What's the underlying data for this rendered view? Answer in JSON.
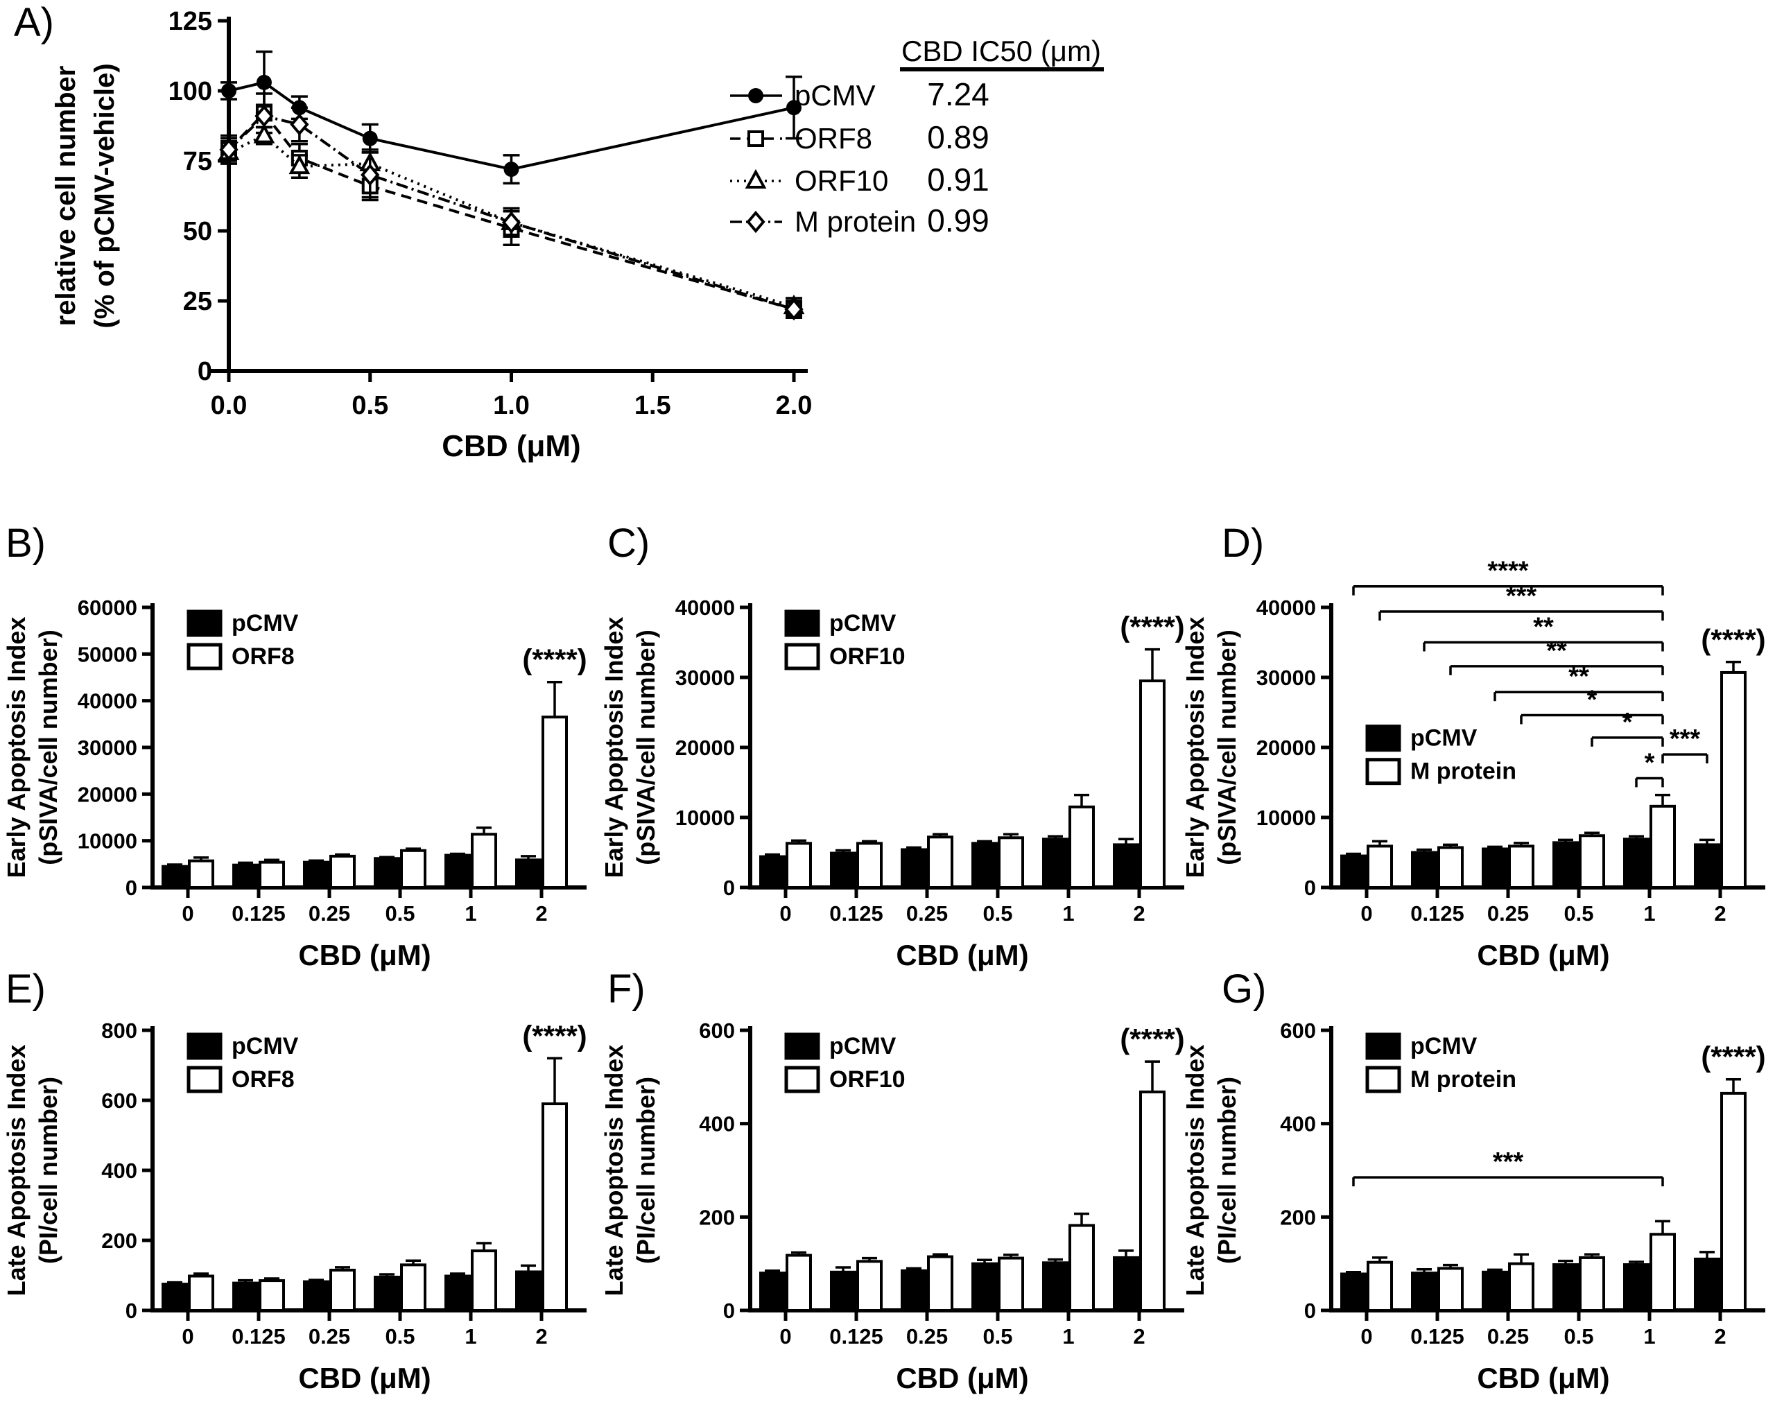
{
  "figure": {
    "background": "#ffffff",
    "ink": "#000000",
    "panel_letters": {
      "a": "A)",
      "b": "B)",
      "c": "C)",
      "d": "D)",
      "e": "E)",
      "f": "F)",
      "g": "G)"
    }
  },
  "chart_data": [
    {
      "id": "A",
      "type": "line",
      "xlabel": "CBD (μM)",
      "ylabel_lines": [
        "relative cell number",
        "(% of pCMV-vehicle)"
      ],
      "xlim": [
        0,
        2
      ],
      "xticks": [
        0,
        0.5,
        1,
        1.5,
        2
      ],
      "xtick_labels": [
        "0.0",
        "0.5",
        "1.0",
        "1.5",
        "2.0"
      ],
      "ylim": [
        0,
        125
      ],
      "yticks": [
        0,
        25,
        50,
        75,
        100,
        125
      ],
      "grid": false,
      "x": [
        0,
        0.125,
        0.25,
        0.5,
        1,
        2
      ],
      "series": [
        {
          "name": "pCMV",
          "marker": "circle-filled",
          "line": "solid",
          "values": [
            100,
            103,
            94,
            83,
            72,
            94
          ],
          "errors": [
            3,
            11,
            4,
            5,
            5,
            11
          ]
        },
        {
          "name": "ORF8",
          "marker": "square-open",
          "line": "dashed",
          "values": [
            79,
            92,
            76,
            66,
            51,
            22
          ],
          "errors": [
            5,
            7,
            5,
            4,
            6,
            3
          ]
        },
        {
          "name": "ORF10",
          "marker": "triangle-open",
          "line": "dotted",
          "values": [
            78,
            84,
            73,
            74,
            53,
            23
          ],
          "errors": [
            4,
            3,
            4,
            4,
            5,
            3
          ]
        },
        {
          "name": "M protein",
          "marker": "diamond-open",
          "line": "dashdot",
          "values": [
            79,
            91,
            88,
            70,
            53,
            22
          ],
          "errors": [
            4,
            4,
            6,
            9,
            5,
            3
          ]
        }
      ],
      "ic50_table": {
        "header": "CBD IC50 (μm)",
        "rows": [
          {
            "label": "pCMV",
            "value": "7.24"
          },
          {
            "label": "ORF8",
            "value": "0.89"
          },
          {
            "label": "ORF10",
            "value": "0.91"
          },
          {
            "label": "M protein",
            "value": "0.99"
          }
        ]
      }
    },
    {
      "id": "B",
      "type": "bar",
      "xlabel": "CBD (μM)",
      "ylabel_lines": [
        "Early Apoptosis Index",
        "(pSIVA/cell number)"
      ],
      "categories": [
        "0",
        "0.125",
        "0.25",
        "0.5",
        "1",
        "2"
      ],
      "ylim": [
        0,
        60000
      ],
      "yticks": [
        0,
        10000,
        20000,
        30000,
        40000,
        50000,
        60000
      ],
      "series": [
        {
          "name": "pCMV",
          "fill": "black",
          "values": [
            4500,
            4800,
            5400,
            6200,
            6900,
            5900
          ],
          "errors": [
            400,
            500,
            350,
            300,
            300,
            800
          ]
        },
        {
          "name": "ORF8",
          "fill": "white",
          "values": [
            5700,
            5400,
            6700,
            7900,
            11400,
            36500
          ],
          "errors": [
            700,
            500,
            350,
            400,
            1400,
            7500
          ]
        }
      ],
      "sig_label": "(****)"
    },
    {
      "id": "C",
      "type": "bar",
      "xlabel": "CBD (μM)",
      "ylabel_lines": [
        "Early Apoptosis Index",
        "(pSIVA/cell number)"
      ],
      "categories": [
        "0",
        "0.125",
        "0.25",
        "0.5",
        "1",
        "2"
      ],
      "ylim": [
        0,
        40000
      ],
      "yticks": [
        0,
        10000,
        20000,
        30000,
        40000
      ],
      "series": [
        {
          "name": "pCMV",
          "fill": "black",
          "values": [
            4400,
            4900,
            5400,
            6300,
            6900,
            6100
          ],
          "errors": [
            300,
            400,
            300,
            300,
            400,
            800
          ]
        },
        {
          "name": "ORF10",
          "fill": "white",
          "values": [
            6300,
            6300,
            7200,
            7100,
            11500,
            29500
          ],
          "errors": [
            400,
            300,
            400,
            500,
            1700,
            4500
          ]
        }
      ],
      "sig_label": "(****)"
    },
    {
      "id": "D",
      "type": "bar",
      "xlabel": "CBD (μM)",
      "ylabel_lines": [
        "Early Apoptosis Index",
        "(pSIVA/cell number)"
      ],
      "categories": [
        "0",
        "0.125",
        "0.25",
        "0.5",
        "1",
        "2"
      ],
      "ylim": [
        0,
        40000
      ],
      "yticks": [
        0,
        10000,
        20000,
        30000,
        40000
      ],
      "series": [
        {
          "name": "pCMV",
          "fill": "black",
          "values": [
            4500,
            5000,
            5500,
            6400,
            6900,
            6100
          ],
          "errors": [
            300,
            400,
            300,
            400,
            400,
            700
          ]
        },
        {
          "name": "M protein",
          "fill": "white",
          "values": [
            5900,
            5700,
            5900,
            7400,
            11600,
            30700
          ],
          "errors": [
            700,
            400,
            450,
            400,
            1600,
            1500
          ]
        }
      ],
      "sig_label": "(****)",
      "legend_y": 23000,
      "brackets": [
        {
          "stars": "****",
          "x1": [
            0,
            0
          ],
          "x2": [
            4,
            1
          ],
          "y": 43000
        },
        {
          "stars": "***",
          "x1": [
            0,
            1
          ],
          "x2": [
            4,
            1
          ],
          "y": 39400
        },
        {
          "stars": "**",
          "x1": [
            1,
            0
          ],
          "x2": [
            4,
            1
          ],
          "y": 35000
        },
        {
          "stars": "**",
          "x1": [
            1,
            1
          ],
          "x2": [
            4,
            1
          ],
          "y": 31600
        },
        {
          "stars": "**",
          "x1": [
            2,
            0
          ],
          "x2": [
            4,
            1
          ],
          "y": 27900
        },
        {
          "stars": "*",
          "x1": [
            2,
            1
          ],
          "x2": [
            4,
            1
          ],
          "y": 24600
        },
        {
          "stars": "*",
          "x1": [
            3,
            1
          ],
          "x2": [
            4,
            1
          ],
          "y": 21400
        },
        {
          "stars": "***",
          "x1": [
            4,
            1
          ],
          "x2": [
            5,
            0
          ],
          "y": 19000
        },
        {
          "stars": "*",
          "x1": [
            4,
            0
          ],
          "x2": [
            4,
            1
          ],
          "y": 15600
        }
      ]
    },
    {
      "id": "E",
      "type": "bar",
      "xlabel": "CBD (μM)",
      "ylabel_lines": [
        "Late Apoptosis Index",
        "(PI/cell number)"
      ],
      "categories": [
        "0",
        "0.125",
        "0.25",
        "0.5",
        "1",
        "2"
      ],
      "ylim": [
        0,
        800
      ],
      "yticks": [
        0,
        200,
        400,
        600,
        800
      ],
      "series": [
        {
          "name": "pCMV",
          "fill": "black",
          "values": [
            75,
            78,
            82,
            95,
            98,
            110
          ],
          "errors": [
            5,
            8,
            5,
            8,
            7,
            18
          ]
        },
        {
          "name": "ORF8",
          "fill": "white",
          "values": [
            98,
            85,
            115,
            130,
            170,
            590
          ],
          "errors": [
            7,
            6,
            8,
            12,
            22,
            130
          ]
        }
      ],
      "sig_label": "(****)"
    },
    {
      "id": "F",
      "type": "bar",
      "xlabel": "CBD (μM)",
      "ylabel_lines": [
        "Late Apoptosis Index",
        "(PI/cell number)"
      ],
      "categories": [
        "0",
        "0.125",
        "0.25",
        "0.5",
        "1",
        "2"
      ],
      "ylim": [
        0,
        600
      ],
      "yticks": [
        0,
        200,
        400,
        600
      ],
      "series": [
        {
          "name": "pCMV",
          "fill": "black",
          "values": [
            80,
            82,
            85,
            100,
            102,
            113
          ],
          "errors": [
            5,
            10,
            5,
            8,
            7,
            15
          ]
        },
        {
          "name": "ORF10",
          "fill": "white",
          "values": [
            118,
            105,
            115,
            112,
            182,
            468
          ],
          "errors": [
            6,
            7,
            5,
            7,
            25,
            65
          ]
        }
      ],
      "sig_label": "(****)"
    },
    {
      "id": "G",
      "type": "bar",
      "xlabel": "CBD (μM)",
      "ylabel_lines": [
        "Late Apoptosis Index",
        "(PI/cell number)"
      ],
      "categories": [
        "0",
        "0.125",
        "0.25",
        "0.5",
        "1",
        "2"
      ],
      "ylim": [
        0,
        600
      ],
      "yticks": [
        0,
        200,
        400,
        600
      ],
      "series": [
        {
          "name": "pCMV",
          "fill": "black",
          "values": [
            78,
            80,
            82,
            98,
            98,
            110
          ],
          "errors": [
            4,
            8,
            5,
            8,
            6,
            15
          ]
        },
        {
          "name": "M protein",
          "fill": "white",
          "values": [
            103,
            90,
            100,
            113,
            163,
            465
          ],
          "errors": [
            10,
            7,
            20,
            7,
            28,
            30
          ]
        }
      ],
      "sig_label": "(****)",
      "brackets": [
        {
          "stars": "***",
          "x1": [
            0,
            0
          ],
          "x2": [
            4,
            1
          ],
          "y": 285
        }
      ]
    }
  ]
}
